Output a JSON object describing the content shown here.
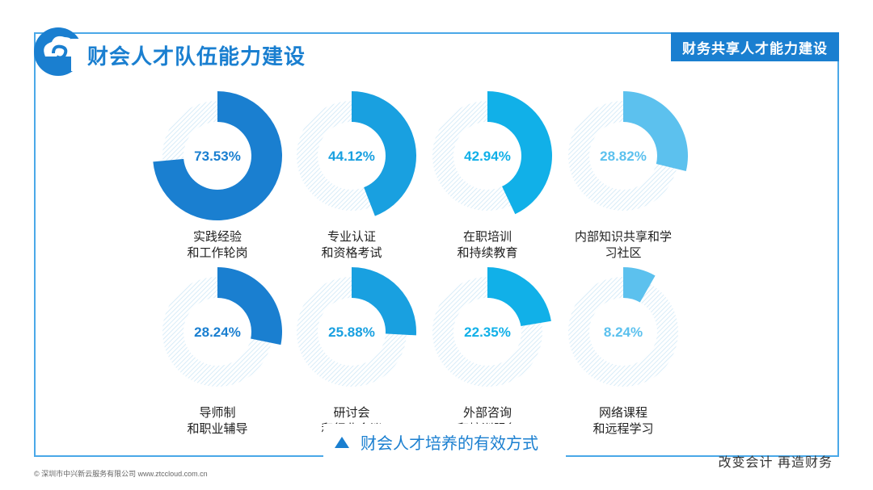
{
  "header": {
    "title": "财会人才队伍能力建设",
    "tag": "财务共享人才能力建设"
  },
  "caption": "财会人才培养的有效方式",
  "footer": {
    "left": "© 深圳市中兴新云服务有限公司  www.ztccloud.com.cn",
    "right": "改变会计  再造财务"
  },
  "chart_data": {
    "type": "pie",
    "items": [
      {
        "label_line1": "实践经验",
        "label_line2": "和工作轮岗",
        "value": 73.53,
        "value_label": "73.53%",
        "color": "#1a7fd0"
      },
      {
        "label_line1": "专业认证",
        "label_line2": "和资格考试",
        "value": 44.12,
        "value_label": "44.12%",
        "color": "#19a0e0"
      },
      {
        "label_line1": "在职培训",
        "label_line2": "和持续教育",
        "value": 42.94,
        "value_label": "42.94%",
        "color": "#11b0e8"
      },
      {
        "label_line1": "内部知识共享和学",
        "label_line2": "习社区",
        "value": 28.82,
        "value_label": "28.82%",
        "color": "#5cc1ee"
      },
      {
        "label_line1": "导师制",
        "label_line2": "和职业辅导",
        "value": 28.24,
        "value_label": "28.24%",
        "color": "#1a7fd0"
      },
      {
        "label_line1": "研讨会",
        "label_line2": "和行业会议",
        "value": 25.88,
        "value_label": "25.88%",
        "color": "#19a0e0"
      },
      {
        "label_line1": "外部咨询",
        "label_line2": "和培训服务",
        "value": 22.35,
        "value_label": "22.35%",
        "color": "#11b0e8"
      },
      {
        "label_line1": "网络课程",
        "label_line2": "和远程学习",
        "value": 8.24,
        "value_label": "8.24%",
        "color": "#5cc1ee"
      }
    ]
  }
}
